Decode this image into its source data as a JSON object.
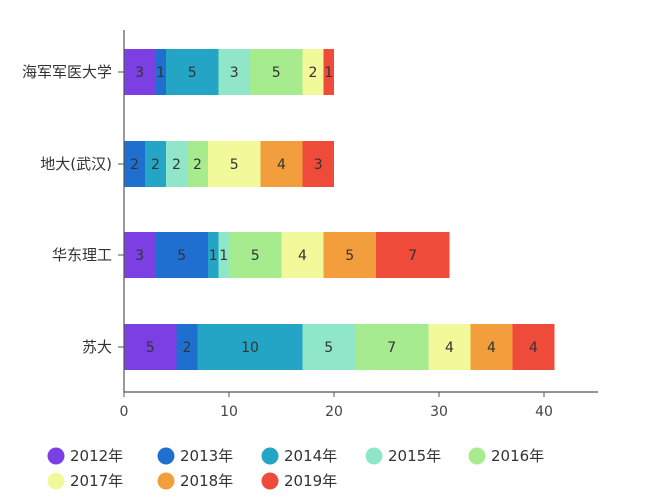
{
  "chart_data": {
    "type": "bar",
    "orientation": "horizontal",
    "stacked": true,
    "title": "",
    "xlabel": "",
    "ylabel": "",
    "xlim": [
      0,
      40
    ],
    "x_ticks": [
      0,
      10,
      20,
      30,
      40
    ],
    "grid": false,
    "legend_position": "bottom",
    "categories": [
      "海军军医大学",
      "地大(武汉)",
      "华东理工",
      "苏大"
    ],
    "series": [
      {
        "name": "2012年",
        "color": "#7b3fe4",
        "values": [
          3,
          0,
          3,
          5
        ]
      },
      {
        "name": "2013年",
        "color": "#1f6fd1",
        "values": [
          1,
          2,
          5,
          2
        ]
      },
      {
        "name": "2014年",
        "color": "#25a5c6",
        "values": [
          5,
          2,
          1,
          10
        ]
      },
      {
        "name": "2015年",
        "color": "#8fe6c8",
        "values": [
          3,
          2,
          1,
          5
        ]
      },
      {
        "name": "2016年",
        "color": "#a6ec8f",
        "values": [
          5,
          2,
          5,
          7
        ]
      },
      {
        "name": "2017年",
        "color": "#f1f99a",
        "values": [
          2,
          5,
          4,
          4
        ]
      },
      {
        "name": "2018年",
        "color": "#f29e3c",
        "values": [
          0,
          4,
          5,
          4
        ]
      },
      {
        "name": "2019年",
        "color": "#ef4b3a",
        "values": [
          1,
          3,
          7,
          4
        ]
      }
    ]
  }
}
